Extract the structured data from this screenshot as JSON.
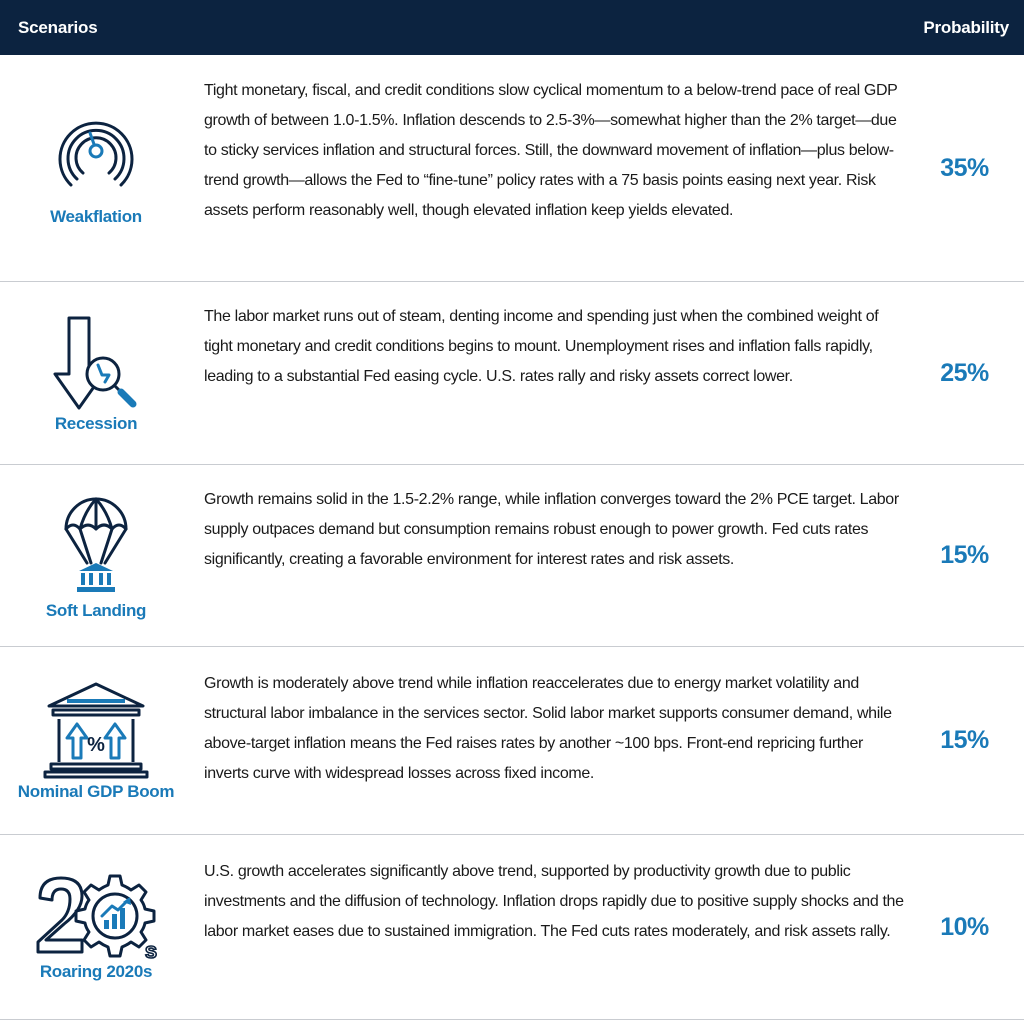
{
  "header": {
    "scenarios_label": "Scenarios",
    "probability_label": "Probability"
  },
  "colors": {
    "header_bg": "#0c2340",
    "accent": "#1a7ab8",
    "icon_dark": "#0c2340"
  },
  "scenarios": [
    {
      "name": "Weakflation",
      "icon": "speedometer-icon",
      "probability": "35%",
      "description": "Tight monetary, fiscal, and credit conditions slow cyclical momentum to a below-trend pace of real GDP growth of between 1.0-1.5%. Inflation descends to 2.5-3%—somewhat higher than the 2% target—due to sticky services inflation and structural forces. Still, the downward movement of inflation—plus below-trend growth—allows the Fed to “fine-tune” policy rates with a 75 basis points easing next year. Risk assets perform reasonably well, though elevated inflation keep yields elevated."
    },
    {
      "name": "Recession",
      "icon": "down-arrow-magnifier-icon",
      "probability": "25%",
      "description": "The labor market runs out of steam, denting income and spending just when the combined weight of tight monetary and credit conditions begins to mount. Unemployment rises and inflation falls rapidly, leading to a substantial Fed easing cycle. U.S. rates rally and risky assets correct lower."
    },
    {
      "name": "Soft Landing",
      "icon": "parachute-bank-icon",
      "probability": "15%",
      "description": "Growth remains solid in the 1.5-2.2% range, while inflation converges toward the 2% PCE target. Labor supply outpaces demand but consumption remains robust enough to power growth. Fed cuts rates significantly, creating a favorable environment for interest rates and risk assets."
    },
    {
      "name": "Nominal GDP Boom",
      "icon": "bank-percent-arrows-icon",
      "probability": "15%",
      "description": "Growth is moderately above trend while inflation reaccelerates due to energy market volatility and structural labor imbalance in the services sector. Solid labor market supports consumer demand, while above-target inflation means the Fed raises rates by another ~100 bps. Front-end repricing further inverts curve with widespread losses across fixed income."
    },
    {
      "name": "Roaring 2020s",
      "icon": "twenty-gear-chart-icon",
      "probability": "10%",
      "description": "U.S. growth accelerates significantly above trend, supported by productivity growth due to public investments and the diffusion of technology. Inflation drops rapidly due to positive supply shocks and the labor market eases due to sustained immigration. The Fed cuts rates moderately, and risk assets rally."
    }
  ]
}
